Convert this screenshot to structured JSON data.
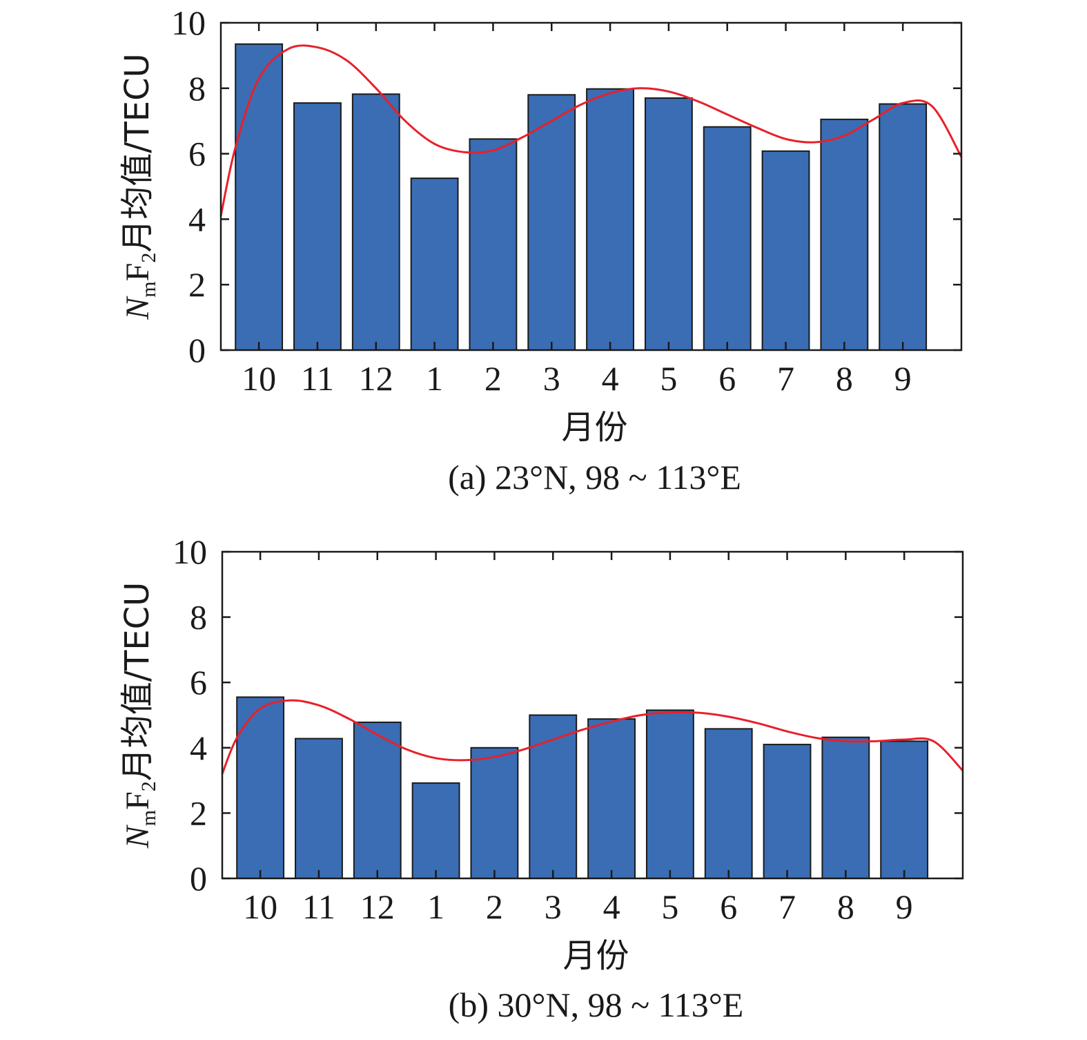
{
  "chart_data": [
    {
      "type": "bar",
      "caption": "(a) 23°N, 98 ~ 113°E",
      "ylabel_parts": {
        "N": "N",
        "m": "m",
        "F": "F",
        "two": "2",
        "rest": "月均值/TECU"
      },
      "xlabel": "月份",
      "categories": [
        "10",
        "11",
        "12",
        "1",
        "2",
        "3",
        "4",
        "5",
        "6",
        "7",
        "8",
        "9"
      ],
      "values": [
        9.35,
        7.55,
        7.82,
        5.25,
        6.45,
        7.8,
        7.98,
        7.7,
        6.82,
        6.08,
        7.05,
        7.52
      ],
      "ylim": [
        0,
        10
      ],
      "yticks": [
        0,
        2,
        4,
        6,
        8,
        10
      ],
      "bar_color": "#3a6db4",
      "curve_color": "#e8202a",
      "fit_curve": {
        "x": [
          0.35,
          0.6,
          1.0,
          1.5,
          2,
          2.5,
          3,
          3.5,
          4,
          4.5,
          5,
          5.5,
          6,
          6.5,
          7,
          7.5,
          8,
          8.5,
          9,
          9.5,
          10,
          10.5,
          11,
          11.5,
          12,
          12.5,
          13.0
        ],
        "y": [
          4.1,
          6.2,
          8.3,
          9.2,
          9.25,
          8.85,
          8.0,
          7.0,
          6.3,
          6.05,
          6.1,
          6.5,
          7.0,
          7.5,
          7.85,
          8.0,
          7.9,
          7.6,
          7.2,
          6.8,
          6.45,
          6.35,
          6.55,
          7.05,
          7.55,
          7.45,
          5.9
        ]
      },
      "xlim": [
        0.35,
        13.0
      ],
      "grid": false
    },
    {
      "type": "bar",
      "caption": "(b) 30°N, 98 ~ 113°E",
      "ylabel_parts": {
        "N": "N",
        "m": "m",
        "F": "F",
        "two": "2",
        "rest": "月均值/TECU"
      },
      "xlabel": "月份",
      "categories": [
        "10",
        "11",
        "12",
        "1",
        "2",
        "3",
        "4",
        "5",
        "6",
        "7",
        "8",
        "9"
      ],
      "values": [
        5.55,
        4.28,
        4.78,
        2.92,
        4.0,
        5.0,
        4.88,
        5.15,
        4.58,
        4.1,
        4.32,
        4.2
      ],
      "ylim": [
        0,
        10
      ],
      "yticks": [
        0,
        2,
        4,
        6,
        8,
        10
      ],
      "bar_color": "#3a6db4",
      "curve_color": "#e8202a",
      "fit_curve": {
        "x": [
          0.35,
          0.6,
          1.0,
          1.5,
          2,
          2.5,
          3,
          3.5,
          4,
          4.5,
          5,
          5.5,
          6,
          6.5,
          7,
          7.5,
          8,
          8.5,
          9,
          9.5,
          10,
          10.5,
          11,
          11.5,
          12,
          12.5,
          13.0
        ],
        "y": [
          3.2,
          4.3,
          5.2,
          5.45,
          5.3,
          4.9,
          4.4,
          3.95,
          3.68,
          3.62,
          3.72,
          3.95,
          4.25,
          4.55,
          4.8,
          5.0,
          5.08,
          5.07,
          4.95,
          4.75,
          4.5,
          4.3,
          4.2,
          4.2,
          4.25,
          4.2,
          3.3
        ]
      },
      "xlim": [
        0.35,
        13.0
      ],
      "grid": false
    }
  ]
}
